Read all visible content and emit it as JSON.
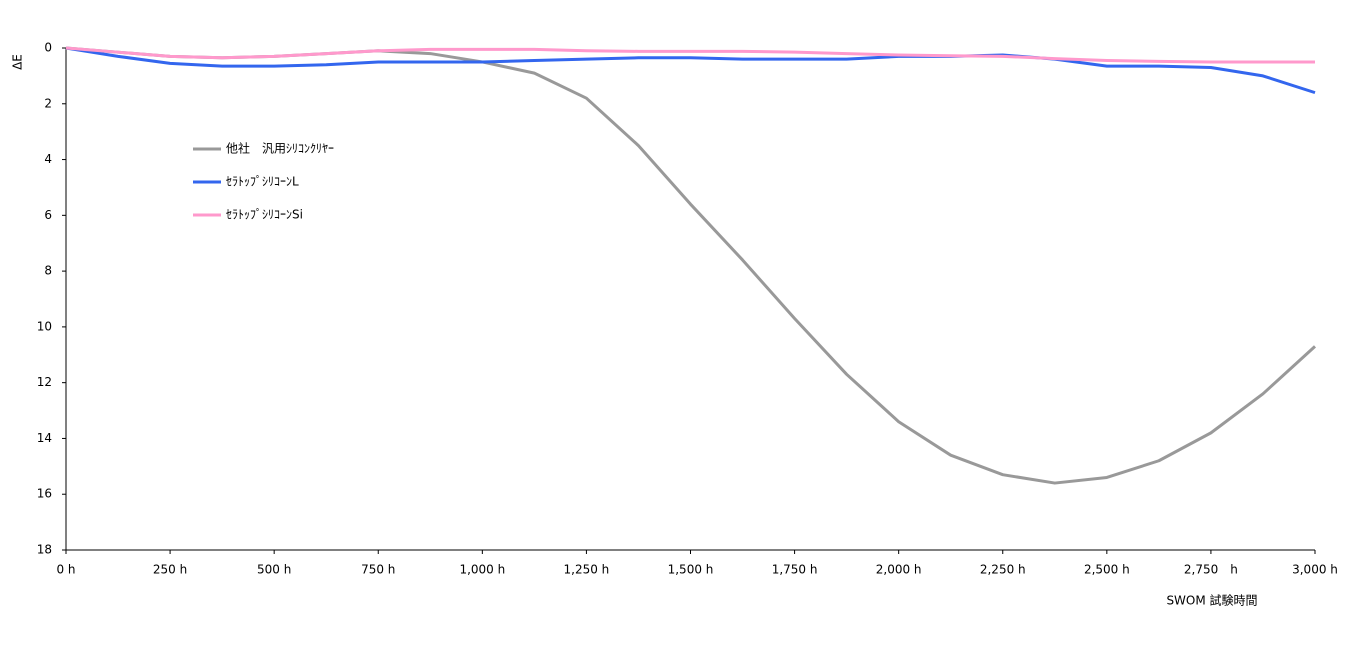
{
  "chart_data": {
    "type": "line",
    "y_title": "ΔE",
    "x_title": "SWOM 試験時間",
    "x": [
      0,
      125,
      250,
      375,
      500,
      625,
      750,
      875,
      1000,
      1125,
      1250,
      1375,
      1500,
      1625,
      1750,
      1875,
      2000,
      2125,
      2250,
      2375,
      2500,
      2625,
      2750,
      2875,
      3000
    ],
    "series": [
      {
        "name": "他社　汎用ｼﾘｺﾝｸﾘﾔｰ",
        "color": "#999999",
        "values": [
          0,
          0.15,
          0.3,
          0.35,
          0.3,
          0.2,
          0.1,
          0.2,
          0.5,
          0.9,
          1.8,
          3.5,
          5.6,
          7.6,
          9.7,
          11.7,
          13.4,
          14.6,
          15.3,
          15.6,
          15.4,
          14.8,
          13.8,
          12.4,
          10.7
        ]
      },
      {
        "name": "ｾﾗﾄｯﾌﾟｼﾘｺｰﾝL",
        "color": "#3366ee",
        "values": [
          0,
          0.3,
          0.55,
          0.65,
          0.65,
          0.6,
          0.5,
          0.5,
          0.5,
          0.45,
          0.4,
          0.35,
          0.35,
          0.4,
          0.4,
          0.4,
          0.3,
          0.3,
          0.25,
          0.4,
          0.65,
          0.65,
          0.7,
          1.0,
          1.6
        ]
      },
      {
        "name": "ｾﾗﾄｯﾌﾟｼﾘｺｰﾝSi",
        "color": "#ff99cc",
        "values": [
          0,
          0.15,
          0.3,
          0.35,
          0.3,
          0.2,
          0.1,
          0.05,
          0.05,
          0.05,
          0.1,
          0.12,
          0.12,
          0.12,
          0.15,
          0.2,
          0.25,
          0.28,
          0.3,
          0.38,
          0.45,
          0.48,
          0.5,
          0.5,
          0.5
        ]
      }
    ],
    "xlim": [
      0,
      3000
    ],
    "xticks": [
      {
        "value": 0,
        "label": "0 h"
      },
      {
        "value": 250,
        "label": "250 h"
      },
      {
        "value": 500,
        "label": "500 h"
      },
      {
        "value": 750,
        "label": "750 h"
      },
      {
        "value": 1000,
        "label": "1,000 h"
      },
      {
        "value": 1250,
        "label": "1,250 h"
      },
      {
        "value": 1500,
        "label": "1,500 h"
      },
      {
        "value": 1750,
        "label": "1,750 h"
      },
      {
        "value": 2000,
        "label": "2,000 h"
      },
      {
        "value": 2250,
        "label": "2,250 h"
      },
      {
        "value": 2500,
        "label": "2,500 h"
      },
      {
        "value": 2750,
        "label": "2,750　h"
      },
      {
        "value": 3000,
        "label": "3,000 h"
      }
    ],
    "ylim": [
      0,
      18
    ],
    "yticks": [
      0,
      2,
      4,
      6,
      8,
      10,
      12,
      14,
      16,
      18
    ],
    "y_inverted": true,
    "grid": false
  }
}
